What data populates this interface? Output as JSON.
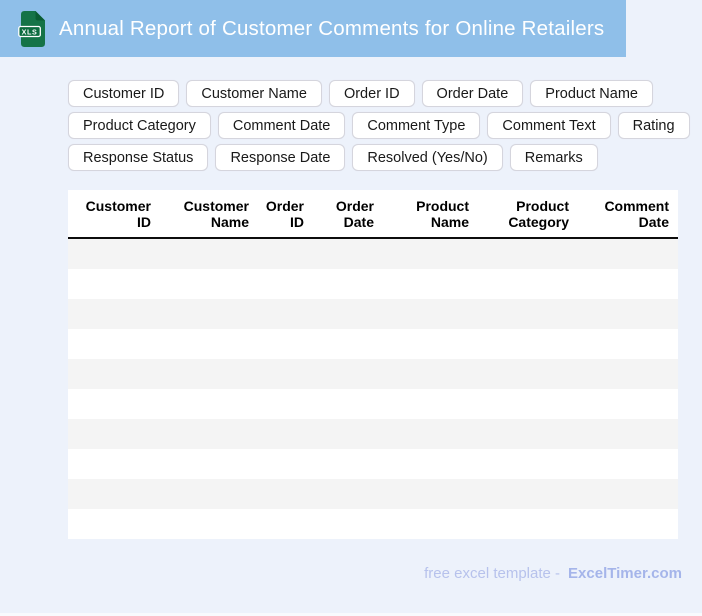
{
  "header": {
    "title": "Annual Report of Customer Comments for Online Retailers",
    "icon_label": "XLS",
    "banner_color": "#8fbfe9",
    "icon_color": "#157347"
  },
  "chip_rows": [
    [
      "Customer ID",
      "Customer Name",
      "Order ID",
      "Order Date",
      "Product Name"
    ],
    [
      "Product Category",
      "Comment Date",
      "Comment Type",
      "Comment Text",
      "Rating"
    ],
    [
      "Response Status",
      "Response Date",
      "Resolved (Yes/No)",
      "Remarks"
    ]
  ],
  "table": {
    "columns": [
      {
        "line1": "Customer",
        "line2": "ID"
      },
      {
        "line1": "Customer",
        "line2": "Name"
      },
      {
        "line1": "Order",
        "line2": "ID"
      },
      {
        "line1": "Order",
        "line2": "Date"
      },
      {
        "line1": "Product",
        "line2": "Name"
      },
      {
        "line1": "Product",
        "line2": "Category"
      },
      {
        "line1": "Comment",
        "line2": "Date"
      }
    ],
    "empty_row_count": 10,
    "stripe_color": "#f4f4f4"
  },
  "footer": {
    "tagline": "free excel template -",
    "brand": "ExcelTimer.com"
  }
}
